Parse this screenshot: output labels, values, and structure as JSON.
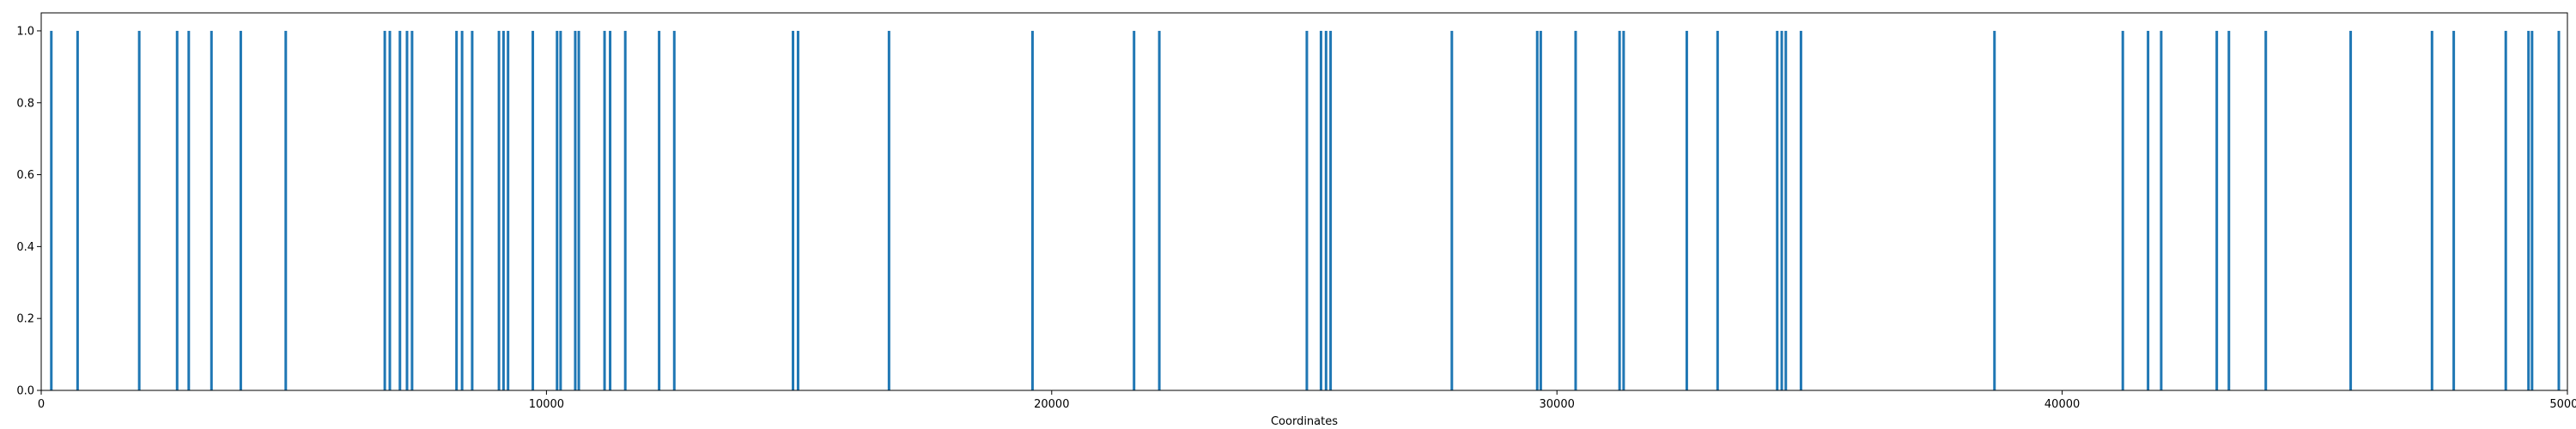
{
  "chart_data": {
    "type": "bar",
    "title": "",
    "xlabel": "Coordinates",
    "ylabel": "",
    "xlim": [
      0,
      50000
    ],
    "ylim": [
      0,
      1.05
    ],
    "grid": false,
    "bar_color": "#1f77b4",
    "x_ticks": [
      0,
      10000,
      20000,
      30000,
      40000,
      50000
    ],
    "x_tick_labels": [
      "0",
      "10000",
      "20000",
      "30000",
      "40000",
      "50000"
    ],
    "y_ticks": [
      0,
      0.2,
      0.4,
      0.6,
      0.8,
      1.0
    ],
    "y_tick_labels": [
      "0.0",
      "0.2",
      "0.4",
      "0.6",
      "0.8",
      "1.0"
    ],
    "series": [
      {
        "x": [
          200,
          720,
          1940,
          2690,
          2920,
          3370,
          3950,
          4840,
          6800,
          6900,
          7100,
          7240,
          7340,
          8220,
          8330,
          8530,
          9060,
          9150,
          9240,
          9730,
          10210,
          10280,
          10570,
          10640,
          11150,
          11260,
          11560,
          12230,
          12530,
          14880,
          14980,
          16780,
          19620,
          21630,
          22130,
          25050,
          25330,
          25430,
          25520,
          27920,
          29610,
          29680,
          30370,
          31240,
          31320,
          32570,
          33180,
          34360,
          34450,
          34530,
          34830,
          38660,
          41200,
          41700,
          41960,
          43060,
          43300,
          44030,
          45710,
          47320,
          47750,
          48780,
          49230,
          49300,
          49830
        ],
        "values": [
          1,
          1,
          1,
          1,
          1,
          1,
          1,
          1,
          1,
          1,
          1,
          1,
          1,
          1,
          1,
          1,
          1,
          1,
          1,
          1,
          1,
          1,
          1,
          1,
          1,
          1,
          1,
          1,
          1,
          1,
          1,
          1,
          1,
          1,
          1,
          1,
          1,
          1,
          1,
          1,
          1,
          1,
          1,
          1,
          1,
          1,
          1,
          1,
          1,
          1,
          1,
          1,
          1,
          1,
          1,
          1,
          1,
          1,
          1,
          1,
          1,
          1,
          1,
          1,
          1
        ]
      }
    ]
  }
}
